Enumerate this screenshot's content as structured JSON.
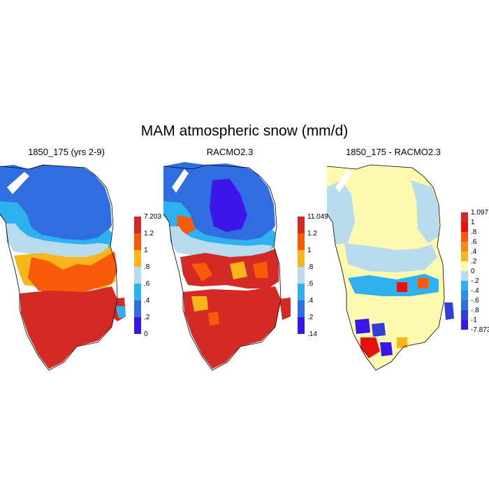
{
  "figure": {
    "title": "MAM atmospheric snow (mm/d)"
  },
  "colors": {
    "absolute_scale": [
      "#3a16e8",
      "#2f6ee0",
      "#2db1ef",
      "#b8dcee",
      "#f8b61a",
      "#f75b08",
      "#d42a24"
    ],
    "difference_scale": [
      "#3a16e8",
      "#2f3fd8",
      "#2f6ee0",
      "#2b8fe8",
      "#2db1ef",
      "#b8dcee",
      "#fdf9ae",
      "#fbe06a",
      "#f8b61a",
      "#f7891a",
      "#f75b08",
      "#e5120c",
      "#d42a24"
    ],
    "coastline": "#000000"
  },
  "panels": [
    {
      "id": "model",
      "title": "1850_175 (yrs 2-9)",
      "colorbar": {
        "max_label": "7.203",
        "labels": [
          "1.2",
          "1",
          ".8",
          ".6",
          ".4",
          ".2",
          "0"
        ]
      }
    },
    {
      "id": "racmo",
      "title": "RACMO2.3",
      "colorbar": {
        "max_label": "11.049",
        "labels": [
          "1.2",
          "1",
          ".8",
          ".6",
          ".4",
          ".2",
          ".14"
        ]
      }
    },
    {
      "id": "difference",
      "title": "1850_175 - RACMO2.3",
      "colorbar": {
        "max_label": "1.097",
        "labels": [
          "1",
          ".8",
          ".6",
          ".4",
          ".2",
          "0",
          "-.2",
          "-.4",
          "-.6",
          "-.8",
          "-1",
          "-7.873"
        ]
      }
    }
  ]
}
